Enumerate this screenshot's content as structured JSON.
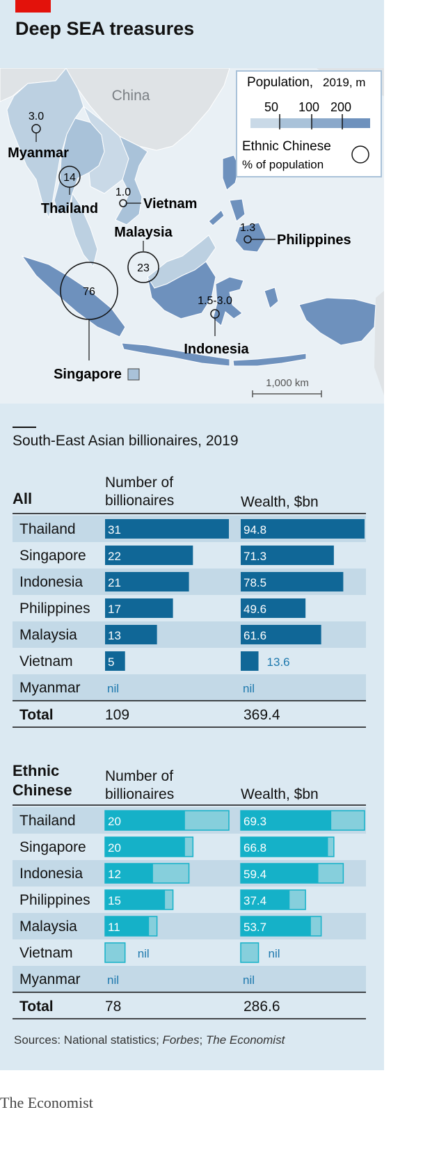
{
  "title": "Deep SEA treasures",
  "map": {
    "china_label": "China",
    "legend": {
      "heading_bold": "Population,",
      "heading_rest": "2019, m",
      "scale_labels": [
        "50",
        "100",
        "200"
      ],
      "ethnic_label_1": "Ethnic Chinese",
      "ethnic_label_2": "% of population"
    },
    "scale_bar_label": "1,000 km",
    "countries": [
      {
        "name": "Myanmar",
        "value": "3.0"
      },
      {
        "name": "Thailand",
        "value": "14"
      },
      {
        "name": "Vietnam",
        "value": "1.0"
      },
      {
        "name": "Malaysia",
        "value": "23"
      },
      {
        "name": "Philippines",
        "value": "1.3"
      },
      {
        "name": "Singapore",
        "value": "76"
      },
      {
        "name": "Indonesia",
        "value": "1.5-3.0"
      }
    ]
  },
  "subtitle": "South-East Asian billionaires, 2019",
  "chart_data": [
    {
      "type": "bar",
      "group_label": "All",
      "columns": [
        "Number of\nbillionaires",
        "Wealth, $bn"
      ],
      "categories": [
        "Thailand",
        "Singapore",
        "Indonesia",
        "Philippines",
        "Malaysia",
        "Vietnam",
        "Myanmar"
      ],
      "series": [
        {
          "name": "Number of billionaires",
          "values": [
            31,
            22,
            21,
            17,
            13,
            5,
            null
          ],
          "labels": [
            "31",
            "22",
            "21",
            "17",
            "13",
            "5",
            "nil"
          ]
        },
        {
          "name": "Wealth, $bn",
          "values": [
            94.8,
            71.3,
            78.5,
            49.6,
            61.6,
            13.6,
            null
          ],
          "labels": [
            "94.8",
            "71.3",
            "78.5",
            "49.6",
            "61.6",
            "13.6",
            "nil"
          ]
        }
      ],
      "total_label": "Total",
      "totals": [
        "109",
        "369.4"
      ]
    },
    {
      "type": "bar",
      "group_label": "Ethnic\nChinese",
      "columns": [
        "Number of\nbillionaires",
        "Wealth, $bn"
      ],
      "categories": [
        "Thailand",
        "Singapore",
        "Indonesia",
        "Philippines",
        "Malaysia",
        "Vietnam",
        "Myanmar"
      ],
      "series": [
        {
          "name": "Number of billionaires",
          "values": [
            20,
            20,
            12,
            15,
            11,
            null,
            null
          ],
          "labels": [
            "20",
            "20",
            "12",
            "15",
            "11",
            "nil",
            "nil"
          ]
        },
        {
          "name": "Wealth, $bn",
          "values": [
            69.3,
            66.8,
            59.4,
            37.4,
            53.7,
            null,
            null
          ],
          "labels": [
            "69.3",
            "66.8",
            "59.4",
            "37.4",
            "53.7",
            "nil",
            "nil"
          ]
        }
      ],
      "outline_values": {
        "count": [
          31,
          22,
          21,
          17,
          13,
          5,
          null
        ],
        "wealth": [
          94.8,
          71.3,
          78.5,
          49.6,
          61.6,
          13.6,
          null
        ]
      },
      "total_label": "Total",
      "totals": [
        "78",
        "286.6"
      ]
    }
  ],
  "colors": {
    "panel": "#dbe9f2",
    "band": "#c3d9e7",
    "all_bar": "#106797",
    "ethnic_bar": "#15b1c8",
    "ethnic_outline_fill": "#86cfdc",
    "nil_text": "#1d78ad"
  },
  "source": {
    "prefix": "Sources: National statistics; ",
    "italic1": "Forbes",
    "sep": "; ",
    "italic2": "The Economist"
  },
  "brand": "The Economist"
}
